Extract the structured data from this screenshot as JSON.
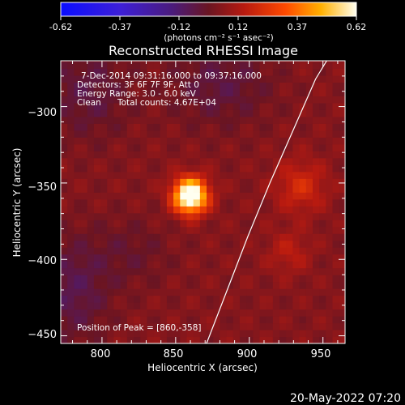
{
  "colorbar": {
    "ticks": [
      "-0.62",
      "-0.37",
      "-0.12",
      "0.12",
      "0.37",
      "0.62"
    ],
    "range": [
      -0.62,
      0.62
    ],
    "unit_label": "(photons cm⁻² s⁻¹ asec⁻²)"
  },
  "chart_data": {
    "type": "heatmap",
    "title": "Reconstructed RHESSI Image",
    "xlabel": "Heliocentric X (arcsec)",
    "ylabel": "Heliocentric Y (arcsec)",
    "xlim": [
      772,
      965
    ],
    "ylim": [
      -455,
      -270
    ],
    "x_ticks": [
      800,
      850,
      900,
      950
    ],
    "y_ticks": [
      -300,
      -350,
      -400,
      -450
    ],
    "x_tick_labels": [
      "800",
      "850",
      "900",
      "950"
    ],
    "y_tick_labels": [
      "−300",
      "−350",
      "−400",
      "−450"
    ],
    "annotations": {
      "time_range": "7-Dec-2014 09:31:16.000 to 09:37:16.000",
      "detectors": "Detectors: 3F 6F 7F 9F, Att 0",
      "energy": "Energy Range: 3.0 - 6.0 keV",
      "clean": "Clean",
      "counts": "Total counts: 4.67E+04",
      "peak": "Position of Peak = [860,-358]"
    },
    "peak": {
      "x": 860,
      "y": -358,
      "value": 0.62
    },
    "sources": [
      {
        "x": 860,
        "y": -358,
        "amplitude": 0.72,
        "sigma": 8
      },
      {
        "x": 935,
        "y": -352,
        "amplitude": 0.16,
        "sigma": 12
      },
      {
        "x": 927,
        "y": -395,
        "amplitude": 0.1,
        "sigma": 10
      }
    ],
    "background_level": 0.05,
    "limb_curve": {
      "x": [
        871,
        885,
        899,
        914,
        930,
        945,
        962
      ],
      "y": [
        -455,
        -420,
        -385,
        -350,
        -315,
        -282,
        -255
      ]
    }
  },
  "footer": {
    "timestamp": "20-May-2022 07:20"
  },
  "colors": {
    "background": "#000000",
    "text": "#ffffff",
    "limb": "#ffffff"
  }
}
